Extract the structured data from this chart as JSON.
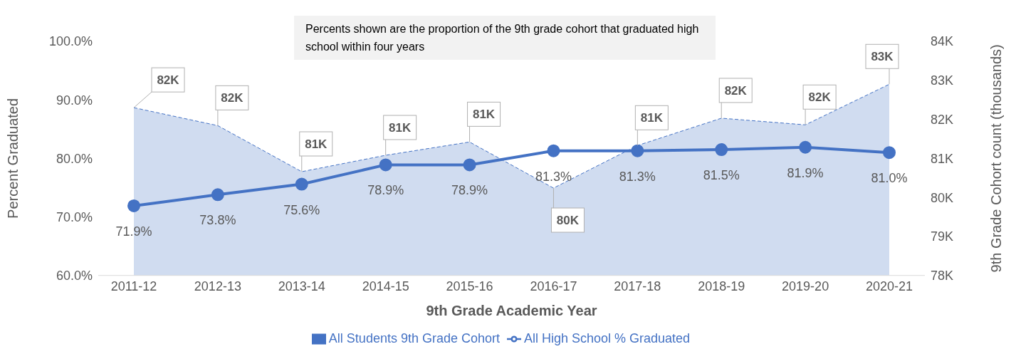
{
  "chart_data": {
    "type": "line",
    "xlabel": "9th Grade Academic Year",
    "ylabel": "Percent Graduated",
    "y2label": "9th Grade Cohort count (thousands)",
    "annotations": [
      "Percents shown are the proportion of the 9th grade cohort that graduated high school within four years"
    ],
    "categories": [
      "2011-12",
      "2012-13",
      "2013-14",
      "2014-15",
      "2015-16",
      "2016-17",
      "2017-18",
      "2018-19",
      "2019-20",
      "2020-21"
    ],
    "series": [
      {
        "name": "All Students 9th Grade Cohort",
        "type": "area",
        "axis": "y2",
        "color": "#4472c4",
        "line_style": "dashed",
        "values": [
          82.3,
          81.84,
          80.66,
          81.08,
          81.42,
          80.24,
          81.33,
          82.03,
          81.86,
          82.9
        ],
        "value_labels": [
          "82K",
          "82K",
          "81K",
          "81K",
          "81K",
          "80K",
          "81K",
          "82K",
          "82K",
          "83K"
        ]
      },
      {
        "name": "All High School % Graduated",
        "axis": "y",
        "color": "#4472c4",
        "marker": "circle",
        "line_style": "solid",
        "values": [
          71.9,
          73.8,
          75.6,
          78.9,
          78.9,
          81.3,
          81.3,
          81.5,
          81.9,
          81.0
        ],
        "value_labels": [
          "71.9%",
          "73.8%",
          "75.6%",
          "78.9%",
          "78.9%",
          "81.3%",
          "81.3%",
          "81.5%",
          "81.9%",
          "81.0%"
        ]
      }
    ],
    "ylim": [
      60,
      100
    ],
    "yticks": [
      {
        "value": 60,
        "label": "60.0%"
      },
      {
        "value": 70,
        "label": "70.0%"
      },
      {
        "value": 80,
        "label": "80.0%"
      },
      {
        "value": 90,
        "label": "90.0%"
      },
      {
        "value": 100,
        "label": "100.0%"
      }
    ],
    "y2lim": [
      78,
      84
    ],
    "y2ticks": [
      {
        "value": 78,
        "label": "78K"
      },
      {
        "value": 79,
        "label": "79K"
      },
      {
        "value": 80,
        "label": "80K"
      },
      {
        "value": 81,
        "label": "81K"
      },
      {
        "value": 82,
        "label": "82K"
      },
      {
        "value": 83,
        "label": "83K"
      },
      {
        "value": 84,
        "label": "84K"
      }
    ],
    "legend": "bottom"
  }
}
